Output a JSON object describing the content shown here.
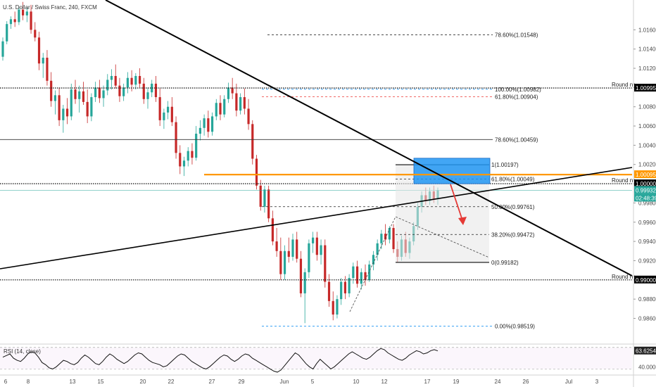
{
  "header": {
    "symbol_title": "U.S. Dollar / Swiss Franc, 240, FXCM"
  },
  "colors": {
    "up": "#26a69a",
    "down": "#ef5350",
    "candle_body_down": "#c62828",
    "orange": "#ff9800",
    "blue": "#2196f3",
    "grey_line": "#555555"
  },
  "chart_data": {
    "type": "candlestick",
    "ylim": [
      0.9834,
      1.0191
    ],
    "y_ticks": [
      "1.01600",
      "1.01400",
      "1.01200",
      "1.01000",
      "1.00800",
      "1.00600",
      "1.00400",
      "1.00200",
      "1.00000",
      "0.99800",
      "0.99600",
      "0.99400",
      "0.99200",
      "0.99000",
      "0.98800",
      "0.98600"
    ],
    "x_ticks": [
      "6",
      "8",
      "13",
      "15",
      "20",
      "22",
      "27",
      "29",
      "Jun",
      "5",
      "10",
      "12",
      "17",
      "19",
      "24",
      "26",
      "Jul",
      "3"
    ],
    "price_badges": [
      {
        "text": "1.00995",
        "color": "#000000"
      },
      {
        "text": "1.00095",
        "color": "#ff9800"
      },
      {
        "text": "1.00000",
        "color": "#000000"
      },
      {
        "text": "0.99932",
        "color": "#26a69a"
      },
      {
        "text": "02:48:39",
        "color": "#26a69a"
      },
      {
        "text": "0.99000",
        "color": "#000000"
      }
    ],
    "horizontal_labels": [
      {
        "text": "Round nr.",
        "price": 1.00995
      },
      {
        "text": "Round nr.",
        "price": 1.0
      },
      {
        "text": "Round nr.",
        "price": 0.99
      }
    ],
    "fib_upper": [
      {
        "text": "78.60%(1.01548)",
        "price": 1.01548,
        "color": "#333333"
      },
      {
        "text": "100.00%(1.00982)",
        "price": 1.00982,
        "color": "#2196f3"
      },
      {
        "text": "61.80%(1.00904)",
        "price": 1.00904,
        "color": "#ef5350"
      },
      {
        "text": "78.60%(1.00459)",
        "price": 1.00459,
        "color": "#333333"
      },
      {
        "text": "0.00%(0.98519)",
        "price": 0.98519,
        "color": "#2196f3"
      }
    ],
    "fib_lower": [
      {
        "text": "1(1.00197)",
        "price": 1.00197
      },
      {
        "text": "61.80%(1.00049)",
        "price": 1.00049
      },
      {
        "text": "50.00%(0.99761)",
        "price": 0.99761
      },
      {
        "text": "38.20%(0.99472)",
        "price": 0.99472
      },
      {
        "text": "0(0.99182)",
        "price": 0.99182
      }
    ],
    "rsi": {
      "label": "RSI (14, close)",
      "value_badge": "63.6254",
      "level_text": "40.0000",
      "values": [
        52,
        55,
        58,
        50,
        46,
        44,
        50,
        58,
        62,
        60,
        52,
        42,
        38,
        32,
        30,
        34,
        40,
        46,
        44,
        40,
        38,
        42,
        50,
        56,
        52,
        46,
        40,
        38,
        44,
        52,
        58,
        54,
        48,
        44,
        40,
        44,
        50,
        56,
        60,
        58,
        52,
        46,
        42,
        40,
        38,
        34,
        36,
        42,
        48,
        54,
        58,
        56,
        50,
        44,
        40,
        36,
        32,
        30,
        34,
        40,
        46,
        52,
        56,
        54,
        48,
        44,
        48,
        54,
        58,
        56,
        50,
        46,
        42,
        38,
        34,
        30,
        26,
        24,
        28,
        36,
        44,
        52,
        60,
        56,
        48,
        40,
        34,
        30,
        40,
        48,
        42,
        36,
        30,
        34,
        40,
        46,
        52,
        58,
        62,
        58,
        54,
        50,
        48,
        52,
        58,
        64,
        68,
        66,
        60,
        56,
        52,
        48,
        46,
        50,
        56,
        60,
        64,
        62,
        58,
        60,
        64,
        66,
        63.6
      ],
      "ylim": [
        20,
        75
      ],
      "levels": [
        70,
        30
      ]
    },
    "candles": [
      [
        1.0132,
        1.0152,
        1.0128,
        1.0148
      ],
      [
        1.0148,
        1.0169,
        1.0145,
        1.0166
      ],
      [
        1.0166,
        1.0174,
        1.0161,
        1.0171
      ],
      [
        1.0171,
        1.0179,
        1.0163,
        1.0168
      ],
      [
        1.0168,
        1.0184,
        1.0165,
        1.0181
      ],
      [
        1.0181,
        1.0189,
        1.017,
        1.0175
      ],
      [
        1.0175,
        1.0183,
        1.0168,
        1.0179
      ],
      [
        1.0179,
        1.0186,
        1.0156,
        1.016
      ],
      [
        1.016,
        1.0168,
        1.0148,
        1.0152
      ],
      [
        1.0152,
        1.0158,
        1.0118,
        1.0125
      ],
      [
        1.0125,
        1.0136,
        1.011,
        1.0131
      ],
      [
        1.0131,
        1.0139,
        1.0102,
        1.0107
      ],
      [
        1.0107,
        1.0116,
        1.008,
        1.0086
      ],
      [
        1.0086,
        1.0097,
        1.0072,
        1.0092
      ],
      [
        1.0092,
        1.01,
        1.006,
        1.0066
      ],
      [
        1.0066,
        1.0082,
        1.0053,
        1.0078
      ],
      [
        1.0078,
        1.0089,
        1.0062,
        1.007
      ],
      [
        1.007,
        1.0104,
        1.0066,
        1.0098
      ],
      [
        1.0098,
        1.0108,
        1.0083,
        1.0088
      ],
      [
        1.0088,
        1.0102,
        1.0074,
        1.0096
      ],
      [
        1.0096,
        1.0106,
        1.0082,
        1.0085
      ],
      [
        1.0085,
        1.0098,
        1.0063,
        1.007
      ],
      [
        1.007,
        1.0094,
        1.0065,
        1.009
      ],
      [
        1.009,
        1.0106,
        1.0085,
        1.01
      ],
      [
        1.01,
        1.0108,
        1.0084,
        1.0089
      ],
      [
        1.0089,
        1.0102,
        1.008,
        1.0097
      ],
      [
        1.0097,
        1.0114,
        1.0092,
        1.0108
      ],
      [
        1.0108,
        1.0119,
        1.0098,
        1.0112
      ],
      [
        1.0112,
        1.0124,
        1.0099,
        1.0102
      ],
      [
        1.0102,
        1.011,
        1.0085,
        1.0091
      ],
      [
        1.0091,
        1.0104,
        1.0086,
        1.01
      ],
      [
        1.01,
        1.0116,
        1.0094,
        1.011
      ],
      [
        1.011,
        1.0118,
        1.0096,
        1.0103
      ],
      [
        1.0103,
        1.0115,
        1.0098,
        1.0112
      ],
      [
        1.0112,
        1.012,
        1.01,
        1.0104
      ],
      [
        1.0104,
        1.011,
        1.0083,
        1.0088
      ],
      [
        1.0088,
        1.01,
        1.0078,
        1.0095
      ],
      [
        1.0095,
        1.0108,
        1.009,
        1.0104
      ],
      [
        1.0104,
        1.0112,
        1.0085,
        1.009
      ],
      [
        1.009,
        1.0099,
        1.006,
        1.0066
      ],
      [
        1.0066,
        1.0078,
        1.0057,
        1.0074
      ],
      [
        1.0074,
        1.0086,
        1.0067,
        1.008
      ],
      [
        1.008,
        1.009,
        1.006,
        1.0064
      ],
      [
        1.0064,
        1.007,
        1.0026,
        1.0032
      ],
      [
        1.0032,
        1.004,
        1.001,
        1.0018
      ],
      [
        1.0018,
        1.0028,
        1.0008,
        1.0024
      ],
      [
        1.0024,
        1.0038,
        1.0018,
        1.0034
      ],
      [
        1.0034,
        1.0042,
        1.002,
        1.0027
      ],
      [
        1.0027,
        1.006,
        1.0024,
        1.0052
      ],
      [
        1.0052,
        1.0066,
        1.0045,
        1.0058
      ],
      [
        1.0058,
        1.0072,
        1.005,
        1.0068
      ],
      [
        1.0068,
        1.0076,
        1.0048,
        1.0054
      ],
      [
        1.0054,
        1.0074,
        1.005,
        1.007
      ],
      [
        1.007,
        1.0088,
        1.0066,
        1.0084
      ],
      [
        1.0084,
        1.0092,
        1.0066,
        1.0072
      ],
      [
        1.0072,
        1.0092,
        1.0069,
        1.0088
      ],
      [
        1.0088,
        1.0105,
        1.0084,
        1.01
      ],
      [
        1.01,
        1.011,
        1.0088,
        1.0094
      ],
      [
        1.0094,
        1.0104,
        1.007,
        1.0076
      ],
      [
        1.0076,
        1.0094,
        1.0072,
        1.009
      ],
      [
        1.009,
        1.0099,
        1.0072,
        1.0078
      ],
      [
        1.0078,
        1.0088,
        1.0056,
        1.0062
      ],
      [
        1.0062,
        1.0066,
        1.002,
        1.0026
      ],
      [
        1.0026,
        1.003,
        0.9994,
        0.9998
      ],
      [
        0.9998,
        1.0004,
        0.9972,
        0.9976
      ],
      [
        0.9976,
        0.9998,
        0.997,
        0.9994
      ],
      [
        0.9994,
        0.9998,
        0.996,
        0.9964
      ],
      [
        0.9964,
        0.9972,
        0.9936,
        0.994
      ],
      [
        0.994,
        0.9954,
        0.9924,
        0.993
      ],
      [
        0.993,
        0.9944,
        0.99,
        0.9906
      ],
      [
        0.9906,
        0.9936,
        0.99,
        0.993
      ],
      [
        0.993,
        0.9944,
        0.9918,
        0.9924
      ],
      [
        0.9924,
        0.9948,
        0.992,
        0.9942
      ],
      [
        0.9942,
        0.995,
        0.9918,
        0.9922
      ],
      [
        0.9922,
        0.993,
        0.9882,
        0.9886
      ],
      [
        0.9886,
        0.9912,
        0.9855,
        0.9908
      ],
      [
        0.9908,
        0.9942,
        0.9902,
        0.9938
      ],
      [
        0.9938,
        0.995,
        0.9928,
        0.9944
      ],
      [
        0.9944,
        0.995,
        0.992,
        0.9926
      ],
      [
        0.9926,
        0.9942,
        0.9916,
        0.9936
      ],
      [
        0.9936,
        0.9942,
        0.9892,
        0.9898
      ],
      [
        0.9898,
        0.9906,
        0.9872,
        0.9878
      ],
      [
        0.9878,
        0.9888,
        0.9858,
        0.9864
      ],
      [
        0.9864,
        0.9884,
        0.986,
        0.988
      ],
      [
        0.988,
        0.9902,
        0.9874,
        0.9898
      ],
      [
        0.9898,
        0.9904,
        0.988,
        0.9886
      ],
      [
        0.9886,
        0.9906,
        0.9882,
        0.9902
      ],
      [
        0.9902,
        0.9918,
        0.9896,
        0.9914
      ],
      [
        0.9914,
        0.992,
        0.9892,
        0.9896
      ],
      [
        0.9896,
        0.9912,
        0.989,
        0.9908
      ],
      [
        0.9908,
        0.9916,
        0.9894,
        0.99
      ],
      [
        0.99,
        0.992,
        0.9898,
        0.9916
      ],
      [
        0.9916,
        0.993,
        0.991,
        0.9926
      ],
      [
        0.9926,
        0.9942,
        0.992,
        0.9938
      ],
      [
        0.9938,
        0.9952,
        0.9932,
        0.9948
      ],
      [
        0.9948,
        0.9958,
        0.9936,
        0.9942
      ],
      [
        0.9942,
        0.9956,
        0.9938,
        0.9954
      ],
      [
        0.9954,
        0.9958,
        0.9928,
        0.9932
      ],
      [
        0.9932,
        0.994,
        0.9918,
        0.9924
      ],
      [
        0.9924,
        0.9946,
        0.992,
        0.9942
      ],
      [
        0.9942,
        0.995,
        0.9924,
        0.9928
      ],
      [
        0.9928,
        0.9944,
        0.9922,
        0.994
      ],
      [
        0.994,
        0.996,
        0.9936,
        0.9956
      ],
      [
        0.9956,
        0.998,
        0.9952,
        0.9976
      ],
      [
        0.9976,
        0.9992,
        0.997,
        0.9988
      ],
      [
        0.9988,
        0.9996,
        0.9978,
        0.9982
      ],
      [
        0.9982,
        0.9996,
        0.9978,
        0.9992
      ],
      [
        0.9992,
        0.9998,
        0.998,
        0.9984
      ],
      [
        0.9984,
        0.9996,
        0.9978,
        0.9993
      ]
    ]
  },
  "annotations": {
    "round_label": "Round nr.",
    "target_arrow": "down"
  }
}
